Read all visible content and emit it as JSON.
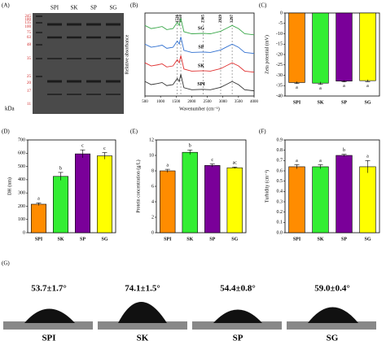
{
  "gel": {
    "panel_label": "(A)",
    "unit": "kDa",
    "lanes": [
      "SPI",
      "SK",
      "SP",
      "SG"
    ],
    "markers": [
      "245",
      "180",
      "135",
      "100",
      "75",
      "63",
      "48",
      "35",
      "25",
      "20",
      "17",
      "11"
    ]
  },
  "chart_data": [
    {
      "type": "line",
      "panel_label": "(B)",
      "xlabel": "Wavenumber (cm⁻¹)",
      "ylabel": "Relative absorbance",
      "x": [
        500,
        700,
        900,
        1050,
        1200,
        1400,
        1536,
        1600,
        1650,
        1750,
        2000,
        2365,
        2600,
        2929,
        3100,
        3297,
        3500,
        3700,
        4000
      ],
      "xlim": [
        500,
        4000
      ],
      "xticks": [
        500,
        1000,
        1500,
        2000,
        2500,
        3000,
        3500,
        4000
      ],
      "ylim": [
        0,
        4
      ],
      "peaks": [
        1536,
        1650,
        2365,
        2929,
        3297
      ],
      "series": [
        {
          "name": "SPI",
          "color": "#333333",
          "values": [
            0.7,
            0.55,
            0.6,
            0.65,
            0.5,
            0.55,
            0.85,
            0.7,
            1.05,
            0.4,
            0.3,
            0.32,
            0.3,
            0.42,
            0.55,
            0.7,
            0.55,
            0.3,
            0.25
          ]
        },
        {
          "name": "SK",
          "color": "#e03030",
          "values": [
            1.6,
            1.45,
            1.5,
            1.55,
            1.4,
            1.45,
            1.75,
            1.6,
            1.95,
            1.3,
            1.2,
            1.22,
            1.2,
            1.32,
            1.45,
            1.6,
            1.45,
            1.2,
            1.15
          ]
        },
        {
          "name": "SP",
          "color": "#2f6fd0",
          "values": [
            2.5,
            2.35,
            2.4,
            2.45,
            2.3,
            2.35,
            2.65,
            2.5,
            2.85,
            2.2,
            2.1,
            2.12,
            2.1,
            2.22,
            2.35,
            2.5,
            2.35,
            2.1,
            2.05
          ]
        },
        {
          "name": "SG",
          "color": "#3aa84a",
          "values": [
            3.4,
            3.25,
            3.3,
            3.35,
            3.2,
            3.25,
            3.55,
            3.4,
            3.75,
            3.1,
            3.0,
            3.02,
            3.0,
            3.12,
            3.25,
            3.4,
            3.25,
            3.0,
            2.95
          ]
        }
      ]
    },
    {
      "type": "bar",
      "panel_label": "(C)",
      "ylabel": "Zeta potential (mV)",
      "categories": [
        "SPI",
        "SK",
        "SP",
        "SG"
      ],
      "values": [
        -33.5,
        -33.8,
        -32.8,
        -32.6
      ],
      "errors": [
        0.5,
        0.6,
        0.4,
        0.5
      ],
      "letters": [
        "a",
        "a",
        "a",
        "a"
      ],
      "colors": [
        "#ff8c00",
        "#33ee33",
        "#7a0099",
        "#ffff00"
      ],
      "ylim": [
        -40,
        0
      ],
      "yticks": [
        0,
        -5,
        -10,
        -15,
        -20,
        -25,
        -30,
        -35,
        -40
      ]
    },
    {
      "type": "bar",
      "panel_label": "(D)",
      "ylabel": "DH (nm)",
      "categories": [
        "SPI",
        "SK",
        "SP",
        "SG"
      ],
      "values": [
        215,
        425,
        595,
        580
      ],
      "errors": [
        10,
        30,
        30,
        25
      ],
      "letters": [
        "a",
        "b",
        "c",
        "c"
      ],
      "colors": [
        "#ff8c00",
        "#33ee33",
        "#7a0099",
        "#ffff00"
      ],
      "ylim": [
        0,
        700
      ],
      "yticks": [
        0,
        100,
        200,
        300,
        400,
        500,
        600,
        700
      ]
    },
    {
      "type": "bar",
      "panel_label": "(E)",
      "ylabel": "Protein concentration (g/L)",
      "categories": [
        "SPI",
        "SK",
        "SP",
        "SG"
      ],
      "values": [
        8.0,
        10.4,
        8.7,
        8.4
      ],
      "errors": [
        0.2,
        0.3,
        0.2,
        0.1
      ],
      "letters": [
        "a",
        "b",
        "c",
        "ac"
      ],
      "colors": [
        "#ff8c00",
        "#33ee33",
        "#7a0099",
        "#ffff00"
      ],
      "ylim": [
        0,
        12
      ],
      "yticks": [
        0,
        2,
        4,
        6,
        8,
        10,
        12
      ]
    },
    {
      "type": "bar",
      "panel_label": "(F)",
      "ylabel": "Turbidity (cm⁻¹)",
      "categories": [
        "SPI",
        "SK",
        "SP",
        "SG"
      ],
      "values": [
        0.64,
        0.64,
        0.75,
        0.64
      ],
      "errors": [
        0.02,
        0.02,
        0.01,
        0.06
      ],
      "letters": [
        "a",
        "a",
        "b",
        "a"
      ],
      "colors": [
        "#ff8c00",
        "#33ee33",
        "#7a0099",
        "#ffff00"
      ],
      "ylim": [
        0,
        0.9
      ],
      "yticks": [
        {
          "value": 0,
          "label": "0.0"
        },
        0.1,
        0.2,
        0.3,
        0.4,
        0.5,
        0.6,
        0.7,
        0.8,
        0.9
      ]
    }
  ],
  "contact_angle": {
    "panel_label": "(G)",
    "samples": [
      {
        "name": "SPI",
        "angle": "53.7±1.7°"
      },
      {
        "name": "SK",
        "angle": "74.1±1.5°"
      },
      {
        "name": "SP",
        "angle": "54.4±0.8°"
      },
      {
        "name": "SG",
        "angle": "59.0±0.4°"
      }
    ]
  }
}
